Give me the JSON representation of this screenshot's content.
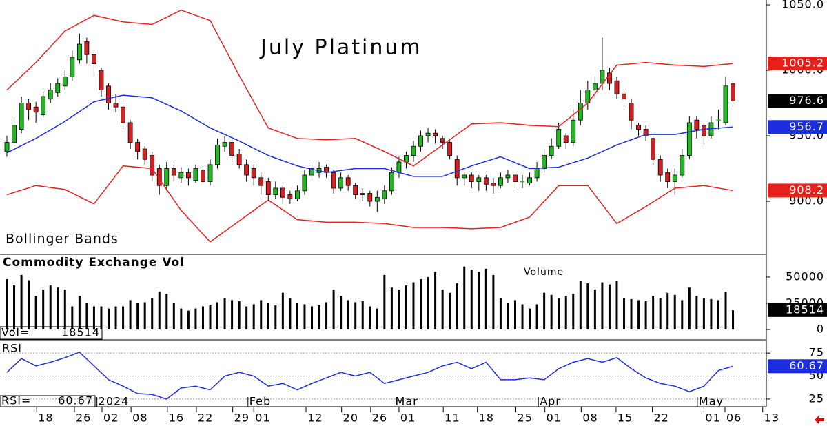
{
  "chart_data": [
    {
      "type": "candlestick",
      "title": "July Platinum",
      "label": "Bollinger Bands",
      "xlim": [
        -0.95,
        104.6
      ],
      "ylim": [
        860,
        1053.7
      ],
      "yticks": [
        {
          "value": 1050,
          "label": "1050.0"
        },
        {
          "value": 1000,
          "label": "1000.0"
        },
        {
          "value": 950,
          "label": "950.0"
        },
        {
          "value": 900,
          "label": "900.0"
        }
      ],
      "up_color": "#22b822",
      "down_color": "#d42020",
      "ohlc": [
        [
          938,
          950,
          934,
          945
        ],
        [
          945,
          965,
          942,
          958
        ],
        [
          955,
          980,
          952,
          975
        ],
        [
          975,
          978,
          962,
          970
        ],
        [
          972,
          976,
          960,
          968
        ],
        [
          966,
          984,
          964,
          980
        ],
        [
          978,
          990,
          975,
          985
        ],
        [
          983,
          994,
          980,
          990
        ],
        [
          988,
          1000,
          985,
          995
        ],
        [
          995,
          1015,
          992,
          1010
        ],
        [
          1008,
          1028,
          1005,
          1020
        ],
        [
          1022,
          1025,
          1005,
          1012
        ],
        [
          1012,
          1015,
          995,
          1005
        ],
        [
          1000,
          1002,
          980,
          985
        ],
        [
          988,
          990,
          970,
          975
        ],
        [
          975,
          982,
          968,
          972
        ],
        [
          972,
          975,
          955,
          960
        ],
        [
          960,
          962,
          940,
          945
        ],
        [
          945,
          948,
          932,
          938
        ],
        [
          940,
          942,
          928,
          932
        ],
        [
          935,
          938,
          915,
          920
        ],
        [
          925,
          928,
          905,
          912
        ],
        [
          912,
          930,
          908,
          925
        ],
        [
          925,
          928,
          915,
          920
        ],
        [
          918,
          926,
          914,
          922
        ],
        [
          922,
          925,
          912,
          918
        ],
        [
          916,
          928,
          914,
          925
        ],
        [
          924,
          927,
          912,
          915
        ],
        [
          915,
          932,
          912,
          928
        ],
        [
          928,
          948,
          925,
          943
        ],
        [
          942,
          950,
          938,
          945
        ],
        [
          945,
          948,
          930,
          935
        ],
        [
          936,
          940,
          925,
          928
        ],
        [
          928,
          932,
          915,
          920
        ],
        [
          925,
          928,
          912,
          918
        ],
        [
          918,
          922,
          905,
          912
        ],
        [
          915,
          918,
          900,
          905
        ],
        [
          905,
          915,
          902,
          910
        ],
        [
          910,
          912,
          898,
          903
        ],
        [
          905,
          908,
          898,
          902
        ],
        [
          902,
          912,
          900,
          908
        ],
        [
          908,
          924,
          905,
          920
        ],
        [
          920,
          928,
          915,
          925
        ],
        [
          922,
          930,
          918,
          925
        ],
        [
          926,
          928,
          918,
          922
        ],
        [
          922,
          924,
          906,
          910
        ],
        [
          910,
          922,
          908,
          918
        ],
        [
          918,
          920,
          908,
          912
        ],
        [
          912,
          914,
          902,
          905
        ],
        [
          905,
          910,
          900,
          906
        ],
        [
          906,
          908,
          896,
          900
        ],
        [
          900,
          908,
          892,
          903
        ],
        [
          902,
          912,
          898,
          908
        ],
        [
          908,
          926,
          905,
          922
        ],
        [
          922,
          934,
          918,
          930
        ],
        [
          930,
          938,
          925,
          935
        ],
        [
          935,
          946,
          930,
          942
        ],
        [
          942,
          954,
          938,
          950
        ],
        [
          950,
          956,
          945,
          952
        ],
        [
          952,
          955,
          944,
          950
        ],
        [
          948,
          950,
          940,
          945
        ],
        [
          945,
          948,
          932,
          935
        ],
        [
          932,
          935,
          912,
          918
        ],
        [
          918,
          922,
          912,
          920
        ],
        [
          920,
          922,
          910,
          915
        ],
        [
          915,
          920,
          908,
          918
        ],
        [
          918,
          920,
          908,
          913
        ],
        [
          914,
          918,
          906,
          912
        ],
        [
          912,
          922,
          910,
          918
        ],
        [
          918,
          924,
          914,
          920
        ],
        [
          920,
          922,
          910,
          915
        ],
        [
          915,
          920,
          910,
          915
        ],
        [
          914,
          922,
          912,
          918
        ],
        [
          918,
          930,
          915,
          925
        ],
        [
          925,
          940,
          922,
          935
        ],
        [
          935,
          948,
          932,
          942
        ],
        [
          942,
          960,
          940,
          955
        ],
        [
          950,
          952,
          940,
          945
        ],
        [
          945,
          970,
          942,
          962
        ],
        [
          962,
          985,
          958,
          975
        ],
        [
          975,
          992,
          970,
          985
        ],
        [
          985,
          995,
          978,
          990
        ],
        [
          990,
          1025,
          985,
          1000
        ],
        [
          998,
          1002,
          985,
          990
        ],
        [
          992,
          995,
          978,
          982
        ],
        [
          982,
          986,
          972,
          978
        ],
        [
          975,
          978,
          955,
          962
        ],
        [
          958,
          960,
          950,
          955
        ],
        [
          955,
          958,
          946,
          950
        ],
        [
          948,
          950,
          928,
          932
        ],
        [
          932,
          935,
          915,
          920
        ],
        [
          922,
          925,
          910,
          915
        ],
        [
          915,
          925,
          905,
          920
        ],
        [
          920,
          940,
          918,
          935
        ],
        [
          935,
          965,
          932,
          960
        ],
        [
          962,
          965,
          948,
          955
        ],
        [
          958,
          960,
          944,
          950
        ],
        [
          950,
          965,
          948,
          960
        ],
        [
          962,
          970,
          955,
          962
        ],
        [
          960,
          995,
          958,
          988
        ],
        [
          990,
          992,
          972,
          976.6
        ]
      ],
      "last_color": "#000000",
      "series": [
        {
          "color": "#e8201c",
          "x": [
            0,
            4,
            8,
            12,
            16,
            20,
            24,
            28,
            32,
            36,
            40,
            44,
            48,
            52,
            56,
            60,
            64,
            68,
            72,
            76,
            80,
            84,
            88,
            92,
            96,
            100
          ],
          "values": [
            985,
            1006,
            1030,
            1042,
            1037,
            1035,
            1046,
            1038,
            996,
            956,
            948,
            947,
            948,
            938,
            927,
            943,
            959,
            960,
            958,
            957,
            975,
            1004,
            1006,
            1004,
            1003,
            1005.2
          ]
        },
        {
          "color": "#1c2ee0",
          "x": [
            0,
            4,
            8,
            12,
            16,
            20,
            24,
            28,
            32,
            36,
            40,
            44,
            48,
            52,
            56,
            60,
            64,
            68,
            72,
            76,
            80,
            84,
            88,
            92,
            96,
            100
          ],
          "values": [
            937,
            948,
            961,
            976,
            981,
            979,
            969,
            956,
            946,
            935,
            927,
            922,
            925,
            925,
            919,
            919,
            927,
            934,
            925,
            926,
            933,
            943,
            951,
            951,
            955,
            956.7
          ]
        },
        {
          "color": "#e8201c",
          "x": [
            0,
            4,
            8,
            12,
            16,
            20,
            24,
            28,
            32,
            36,
            40,
            44,
            48,
            52,
            56,
            60,
            64,
            68,
            72,
            76,
            80,
            84,
            88,
            92,
            96,
            100
          ],
          "values": [
            905,
            912,
            909,
            898,
            927,
            925,
            893,
            869,
            885,
            901,
            886,
            884,
            884,
            883,
            880,
            880,
            879,
            880,
            888,
            912,
            912,
            883,
            896,
            910,
            912,
            908.2
          ]
        }
      ]
    },
    {
      "type": "bar",
      "title": "Commodity Exchange Vol",
      "annotation": "Volume",
      "value_label": "Vol=",
      "xlim": [
        -0.95,
        104.6
      ],
      "ylim": [
        -9200,
        71000
      ],
      "yticks": [
        50000,
        25000,
        0
      ],
      "color": "#000000",
      "values": [
        48000,
        42000,
        52000,
        47000,
        32000,
        38000,
        42000,
        40000,
        38000,
        22000,
        32000,
        25000,
        22000,
        22000,
        20000,
        22000,
        22000,
        28000,
        25000,
        26000,
        30000,
        36000,
        34000,
        25000,
        20000,
        18000,
        20000,
        22000,
        23000,
        26000,
        30000,
        28000,
        27000,
        22000,
        24000,
        28000,
        25000,
        23000,
        35000,
        30000,
        25000,
        24000,
        22000,
        23000,
        26000,
        38000,
        32000,
        28000,
        26000,
        27000,
        22000,
        20000,
        52000,
        40000,
        38000,
        42000,
        45000,
        48000,
        50000,
        55000,
        38000,
        35000,
        44000,
        60000,
        57000,
        55000,
        58000,
        52000,
        30000,
        25000,
        28000,
        24000,
        20000,
        24000,
        35000,
        33000,
        30000,
        32000,
        34000,
        46000,
        44000,
        38000,
        45000,
        43000,
        46000,
        30000,
        29000,
        28000,
        27000,
        32000,
        30000,
        35000,
        33000,
        28000,
        40000,
        32000,
        30000,
        29000,
        28000,
        36000,
        18514
      ]
    },
    {
      "type": "line",
      "title": "RSI",
      "value_label": "RSI=",
      "color": "#1c2ee0",
      "grid": true,
      "xlim": [
        -0.95,
        104.6
      ],
      "ylim": [
        16.7,
        88.6
      ],
      "yticks": [
        75,
        50,
        25
      ],
      "x": [
        0,
        2,
        4,
        6,
        8,
        10,
        12,
        14,
        16,
        18,
        20,
        22,
        24,
        26,
        28,
        30,
        32,
        34,
        36,
        38,
        40,
        42,
        44,
        46,
        48,
        50,
        52,
        54,
        56,
        58,
        60,
        62,
        64,
        66,
        68,
        70,
        72,
        74,
        76,
        78,
        80,
        82,
        84,
        86,
        88,
        90,
        92,
        94,
        96,
        98,
        100
      ],
      "values": [
        54,
        69,
        61,
        65,
        70,
        76,
        61,
        46,
        39,
        31,
        30,
        25,
        37,
        39,
        35,
        50,
        54,
        50,
        39,
        42,
        35,
        42,
        48,
        54,
        50,
        54,
        42,
        46,
        50,
        54,
        61,
        65,
        58,
        65,
        46,
        46,
        48,
        46,
        58,
        65,
        69,
        65,
        70,
        58,
        48,
        42,
        39,
        33,
        39,
        56,
        60.67
      ],
      "xticks": [
        {
          "value": 4.1,
          "label": "18"
        },
        {
          "value": 9.3,
          "label": "26"
        },
        {
          "value": 13.1,
          "label": "02"
        },
        {
          "value": 17.1,
          "label": "08"
        },
        {
          "value": 22.1,
          "label": "16"
        },
        {
          "value": 26.1,
          "label": "22"
        },
        {
          "value": 31.1,
          "label": "29"
        },
        {
          "value": 34,
          "label": "01"
        },
        {
          "value": 41.2,
          "label": "12"
        },
        {
          "value": 46.1,
          "label": "20"
        },
        {
          "value": 50.1,
          "label": "26"
        },
        {
          "value": 54,
          "label": "01"
        },
        {
          "value": 60.1,
          "label": "11"
        },
        {
          "value": 64.8,
          "label": "18"
        },
        {
          "value": 70.1,
          "label": "25"
        },
        {
          "value": 74.1,
          "label": "01"
        },
        {
          "value": 79.1,
          "label": "08"
        },
        {
          "value": 83.9,
          "label": "15"
        },
        {
          "value": 88.9,
          "label": "22"
        },
        {
          "value": 96,
          "label": "01"
        },
        {
          "value": 98.9,
          "label": "06"
        },
        {
          "value": 104.1,
          "label": "13"
        }
      ],
      "month_ticks": [
        {
          "value": 12.4,
          "label": "2024"
        },
        {
          "value": 33.2,
          "label": "Feb"
        },
        {
          "value": 53.3,
          "label": "Mar"
        },
        {
          "value": 73.2,
          "label": "Apr"
        },
        {
          "value": 95.1,
          "label": "May"
        }
      ]
    }
  ]
}
